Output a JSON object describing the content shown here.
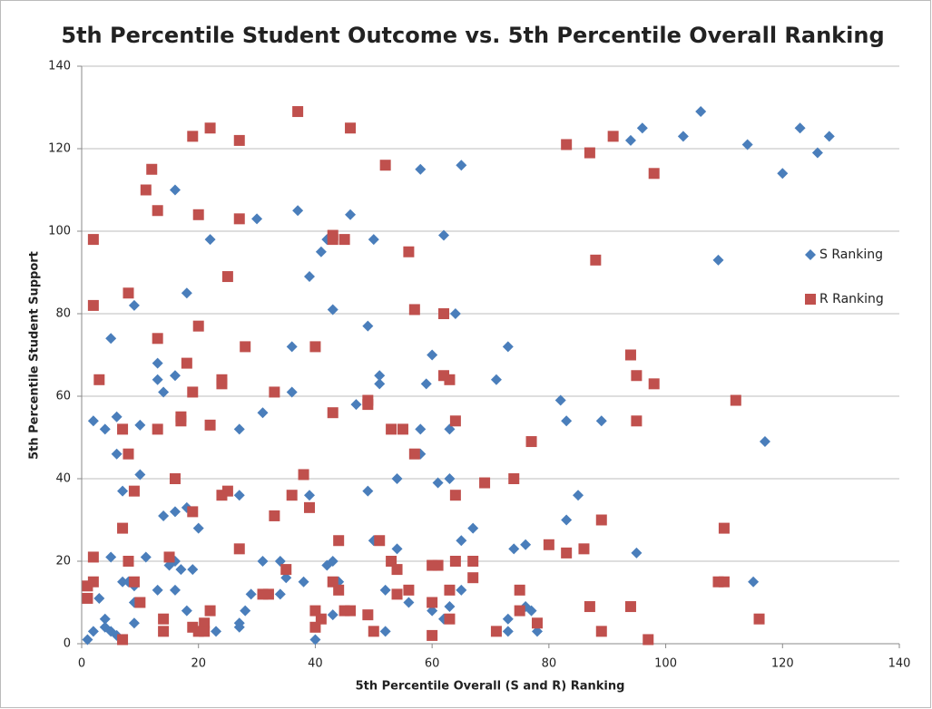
{
  "chart_data": {
    "type": "scatter",
    "title": "5th Percentile Student Outcome vs. 5th Percentile Overall Ranking",
    "x_label": "5th Percentile  Overall (S and R) Ranking",
    "y_label": "5th Percentile Student Support",
    "xlim": [
      0,
      140
    ],
    "xticks": [
      0,
      20,
      40,
      60,
      80,
      100,
      120,
      140
    ],
    "ylim": [
      0,
      140
    ],
    "yticks": [
      0,
      20,
      40,
      60,
      80,
      100,
      120,
      140
    ],
    "grid": true,
    "legend": "right",
    "series": [
      {
        "name": "S Ranking",
        "color": "#4a7ebb",
        "marker": "diamond",
        "x": [
          1,
          2,
          2,
          3,
          4,
          4,
          4,
          5,
          5,
          5,
          6,
          6,
          6,
          7,
          7,
          8,
          9,
          9,
          9,
          9,
          10,
          10,
          11,
          13,
          13,
          13,
          14,
          14,
          15,
          16,
          16,
          16,
          16,
          16,
          17,
          18,
          18,
          18,
          19,
          20,
          22,
          23,
          27,
          27,
          27,
          27,
          28,
          29,
          30,
          31,
          31,
          32,
          34,
          34,
          35,
          36,
          36,
          37,
          38,
          39,
          39,
          40,
          41,
          42,
          42,
          43,
          43,
          43,
          44,
          46,
          47,
          49,
          49,
          50,
          50,
          51,
          51,
          52,
          52,
          54,
          54,
          56,
          58,
          58,
          58,
          59,
          60,
          60,
          61,
          62,
          62,
          63,
          63,
          63,
          64,
          65,
          65,
          65,
          67,
          71,
          73,
          73,
          73,
          74,
          76,
          76,
          77,
          78,
          82,
          83,
          83,
          85,
          89,
          94,
          95,
          96,
          103,
          106,
          109,
          114,
          115,
          117,
          120,
          123,
          126,
          128
        ],
        "values": [
          1,
          54,
          3,
          11,
          52,
          6,
          4,
          21,
          74,
          3,
          55,
          46,
          2,
          37,
          15,
          15,
          82,
          14,
          10,
          5,
          53,
          41,
          21,
          68,
          64,
          13,
          61,
          31,
          19,
          110,
          65,
          32,
          20,
          13,
          18,
          85,
          33,
          8,
          18,
          28,
          98,
          3,
          52,
          36,
          5,
          4,
          8,
          12,
          103,
          56,
          20,
          12,
          20,
          12,
          16,
          72,
          61,
          105,
          15,
          89,
          36,
          1,
          95,
          98,
          19,
          81,
          20,
          7,
          15,
          104,
          58,
          77,
          37,
          98,
          25,
          65,
          63,
          13,
          3,
          40,
          23,
          10,
          115,
          52,
          46,
          63,
          70,
          8,
          39,
          99,
          6,
          52,
          40,
          9,
          80,
          116,
          25,
          13,
          28,
          64,
          72,
          6,
          3,
          23,
          24,
          9,
          8,
          3,
          59,
          54,
          30,
          36,
          54,
          122,
          22,
          125,
          123,
          129,
          93,
          121,
          15,
          49,
          114,
          125,
          119,
          123
        ]
      },
      {
        "name": "R Ranking",
        "color": "#c0504d",
        "marker": "square",
        "x": [
          1,
          1,
          2,
          2,
          2,
          2,
          3,
          7,
          7,
          7,
          8,
          8,
          8,
          9,
          9,
          10,
          11,
          12,
          13,
          13,
          13,
          14,
          14,
          15,
          16,
          17,
          17,
          18,
          19,
          19,
          19,
          19,
          20,
          20,
          20,
          21,
          21,
          22,
          22,
          22,
          24,
          24,
          24,
          25,
          25,
          27,
          27,
          27,
          28,
          31,
          32,
          33,
          33,
          35,
          36,
          37,
          38,
          39,
          40,
          40,
          40,
          41,
          43,
          43,
          43,
          43,
          44,
          44,
          45,
          45,
          46,
          46,
          49,
          49,
          49,
          50,
          51,
          52,
          53,
          53,
          54,
          54,
          55,
          56,
          56,
          57,
          57,
          60,
          60,
          60,
          61,
          62,
          62,
          63,
          63,
          63,
          64,
          64,
          64,
          67,
          67,
          69,
          71,
          74,
          75,
          75,
          77,
          78,
          80,
          83,
          83,
          86,
          87,
          87,
          88,
          89,
          89,
          91,
          94,
          94,
          95,
          95,
          97,
          98,
          98,
          109,
          110,
          110,
          112,
          116
        ],
        "values": [
          14,
          11,
          98,
          82,
          21,
          15,
          64,
          52,
          28,
          1,
          85,
          46,
          20,
          37,
          15,
          10,
          110,
          115,
          105,
          74,
          52,
          6,
          3,
          21,
          40,
          55,
          54,
          68,
          123,
          61,
          32,
          4,
          104,
          77,
          3,
          5,
          3,
          125,
          53,
          8,
          64,
          63,
          36,
          89,
          37,
          122,
          103,
          23,
          72,
          12,
          12,
          61,
          31,
          18,
          36,
          129,
          41,
          33,
          72,
          8,
          4,
          6,
          99,
          98,
          56,
          15,
          25,
          13,
          98,
          8,
          125,
          8,
          59,
          58,
          7,
          3,
          25,
          116,
          52,
          20,
          18,
          12,
          52,
          95,
          13,
          81,
          46,
          19,
          10,
          2,
          19,
          80,
          65,
          64,
          13,
          6,
          54,
          36,
          20,
          20,
          16,
          39,
          3,
          40,
          13,
          8,
          49,
          5,
          24,
          121,
          22,
          23,
          119,
          9,
          93,
          30,
          3,
          123,
          70,
          9,
          65,
          54,
          1,
          114,
          63,
          15,
          15,
          28,
          59,
          6
        ]
      }
    ]
  }
}
